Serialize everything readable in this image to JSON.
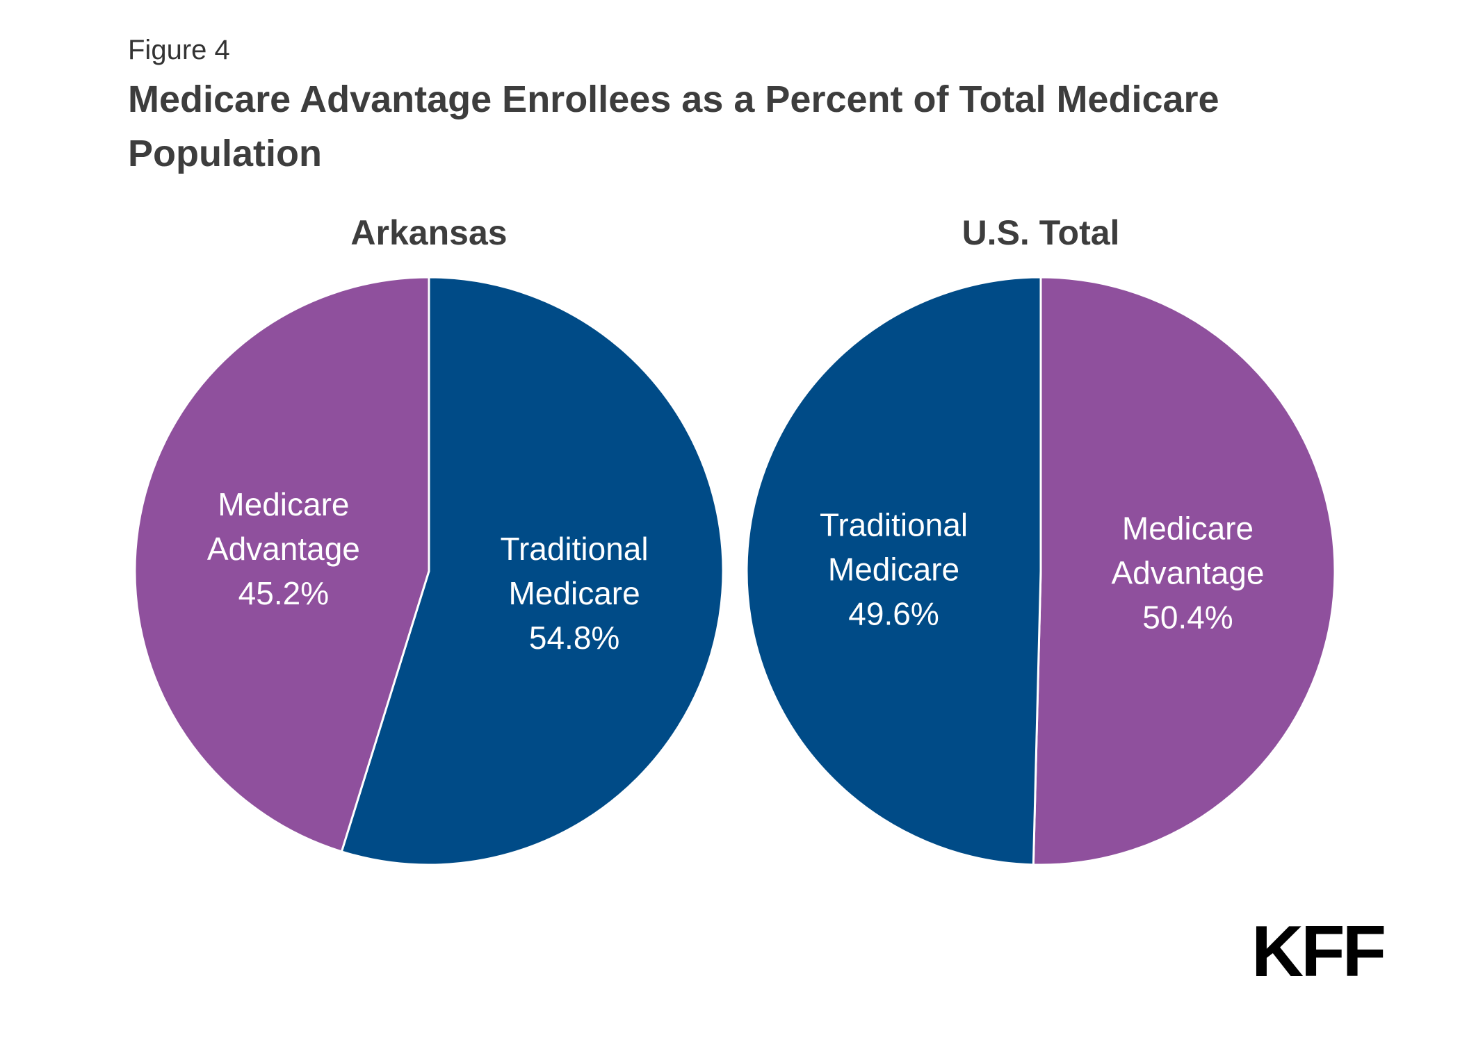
{
  "figure_label": "Figure 4",
  "title": "Medicare Advantage Enrollees as a Percent of Total Medicare Population",
  "logo_text": "KFF",
  "colors": {
    "medicare_advantage": "#8f509d",
    "traditional_medicare": "#004b87",
    "separator": "#ffffff",
    "text": "#3d3d3d"
  },
  "chart_data": [
    {
      "type": "pie",
      "title": "Arkansas",
      "slices": [
        {
          "label_lines": [
            "Traditional",
            "Medicare"
          ],
          "value": 54.8,
          "value_label": "54.8%",
          "color": "#004b87"
        },
        {
          "label_lines": [
            "Medicare",
            "Advantage"
          ],
          "value": 45.2,
          "value_label": "45.2%",
          "color": "#8f509d"
        }
      ]
    },
    {
      "type": "pie",
      "title": "U.S. Total",
      "slices": [
        {
          "label_lines": [
            "Medicare",
            "Advantage"
          ],
          "value": 50.4,
          "value_label": "50.4%",
          "color": "#8f509d"
        },
        {
          "label_lines": [
            "Traditional",
            "Medicare"
          ],
          "value": 49.6,
          "value_label": "49.6%",
          "color": "#004b87"
        }
      ]
    }
  ]
}
